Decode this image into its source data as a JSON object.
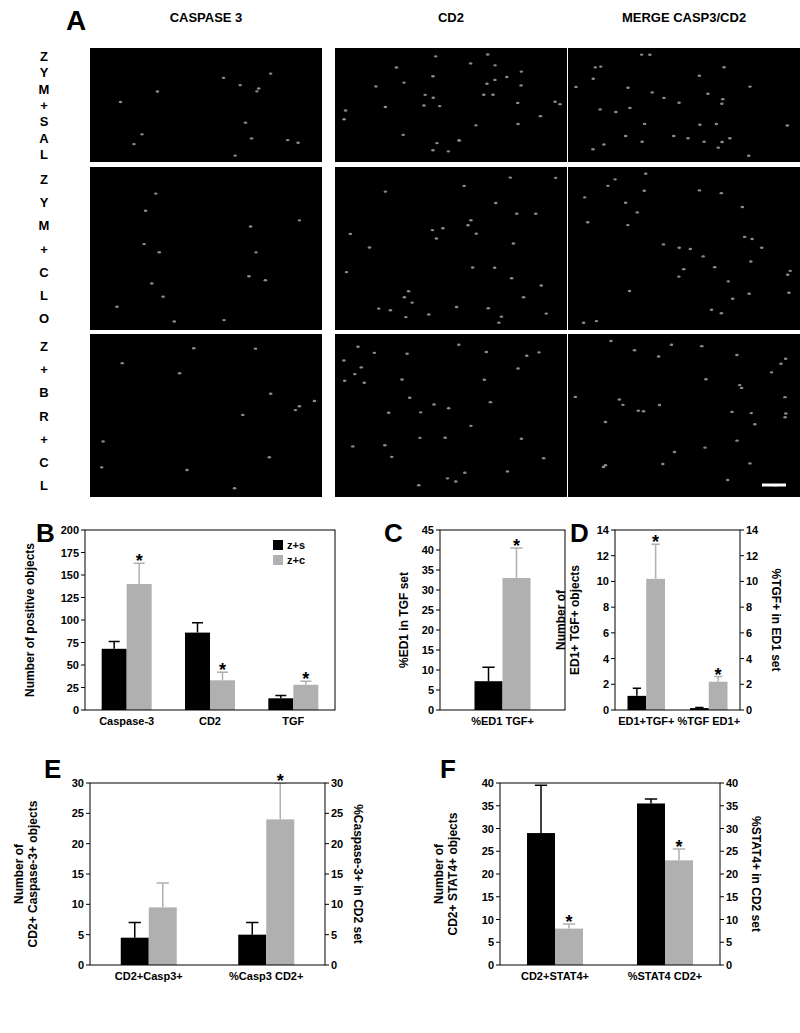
{
  "image_panel": {
    "panel_label": "A",
    "columns": [
      "CASPASE 3",
      "CD2",
      "MERGE CASP3/CD2"
    ],
    "rows": [
      "ZYM+SAL",
      "ZYM+CLO",
      "Z+BR+CL"
    ]
  },
  "chart_data": [
    {
      "panel_label": "B",
      "type": "bar",
      "y_label": "Number of positive objects",
      "categories": [
        "Caspase-3",
        "CD2",
        "TGF"
      ],
      "series": [
        {
          "name": "z+s",
          "color": "#000000",
          "values": [
            68,
            86,
            13
          ],
          "errors": [
            8,
            11,
            3
          ]
        },
        {
          "name": "z+c",
          "color": "#b0b0b0",
          "values": [
            140,
            33,
            28
          ],
          "errors": [
            23,
            9,
            4
          ],
          "significance": [
            "*",
            "*",
            "*"
          ]
        }
      ],
      "ylim": [
        0,
        200
      ],
      "yticks": [
        0,
        25,
        50,
        75,
        100,
        125,
        150,
        175,
        200
      ],
      "legend": "upper right"
    },
    {
      "panel_label": "C",
      "type": "bar",
      "y_label": "%ED1 in TGF set",
      "categories": [
        "%ED1 TGF+"
      ],
      "series": [
        {
          "color": "#000000",
          "values": [
            7.2
          ],
          "errors": [
            3.5
          ]
        },
        {
          "color": "#b0b0b0",
          "values": [
            33
          ],
          "errors": [
            7.5
          ],
          "significance": [
            "*"
          ]
        }
      ],
      "ylim": [
        0,
        45
      ],
      "yticks": [
        0,
        5,
        10,
        15,
        20,
        25,
        30,
        35,
        40,
        45
      ]
    },
    {
      "panel_label": "D",
      "type": "bar",
      "y_label": "Number of ED1+ TGF+ objects",
      "y2_label": "%TGF+ in ED1 set",
      "categories": [
        "ED1+TGF+",
        "%TGF ED1+"
      ],
      "series": [
        {
          "color": "#000000",
          "values": [
            1.1,
            null
          ],
          "errors": [
            0.6,
            null
          ]
        },
        {
          "color": "#b0b0b0",
          "values": [
            10.2,
            null
          ],
          "errors": [
            2.7,
            null
          ],
          "significance": [
            "*",
            null
          ]
        },
        {
          "color": "#000000",
          "axis": "y2",
          "values": [
            null,
            0.15
          ],
          "errors": [
            null,
            0.05
          ]
        },
        {
          "color": "#b0b0b0",
          "axis": "y2",
          "values": [
            null,
            2.2
          ],
          "errors": [
            null,
            0.4
          ],
          "significance": [
            null,
            "*"
          ]
        }
      ],
      "ylim": [
        0,
        14
      ],
      "yticks": [
        0,
        2,
        4,
        6,
        8,
        10,
        12,
        14
      ],
      "y2lim": [
        0,
        14
      ],
      "y2ticks": [
        0,
        2,
        4,
        6,
        8,
        10,
        12,
        14
      ]
    },
    {
      "panel_label": "E",
      "type": "bar",
      "y_label": "Number of CD2+ Caspase-3+ objects",
      "y2_label": "%Caspase-3+ in CD2 set",
      "categories": [
        "CD2+Casp3+",
        "%Casp3 CD2+"
      ],
      "series": [
        {
          "color": "#000000",
          "values": [
            4.5,
            null
          ],
          "errors": [
            2.5,
            null
          ]
        },
        {
          "color": "#b0b0b0",
          "values": [
            9.5,
            null
          ],
          "errors": [
            4,
            null
          ]
        },
        {
          "color": "#000000",
          "axis": "y2",
          "values": [
            null,
            5
          ],
          "errors": [
            null,
            2
          ]
        },
        {
          "color": "#b0b0b0",
          "axis": "y2",
          "values": [
            null,
            24
          ],
          "errors": [
            null,
            6
          ],
          "significance": [
            null,
            "*"
          ]
        }
      ],
      "ylim": [
        0,
        30
      ],
      "yticks": [
        0,
        5,
        10,
        15,
        20,
        25,
        30
      ],
      "y2lim": [
        0,
        30
      ],
      "y2ticks": [
        0,
        5,
        10,
        15,
        20,
        25,
        30
      ]
    },
    {
      "panel_label": "F",
      "type": "bar",
      "y_label": "Number of CD2+ STAT4+ objects",
      "y2_label": "%STAT4+ in CD2 set",
      "categories": [
        "CD2+STAT4+",
        "%STAT4 CD2+"
      ],
      "series": [
        {
          "color": "#000000",
          "values": [
            29,
            null
          ],
          "errors": [
            10.5,
            null
          ]
        },
        {
          "color": "#b0b0b0",
          "values": [
            8,
            null
          ],
          "errors": [
            1,
            null
          ],
          "significance": [
            "*",
            null
          ]
        },
        {
          "color": "#000000",
          "axis": "y2",
          "values": [
            null,
            35.5
          ],
          "errors": [
            null,
            1
          ]
        },
        {
          "color": "#b0b0b0",
          "axis": "y2",
          "values": [
            null,
            23
          ],
          "errors": [
            null,
            2.5
          ],
          "significance": [
            null,
            "*"
          ]
        }
      ],
      "ylim": [
        0,
        40
      ],
      "yticks": [
        0,
        5,
        10,
        15,
        20,
        25,
        30,
        35,
        40
      ],
      "y2lim": [
        0,
        40
      ],
      "y2ticks": [
        0,
        5,
        10,
        15,
        20,
        25,
        30,
        35,
        40
      ]
    }
  ]
}
